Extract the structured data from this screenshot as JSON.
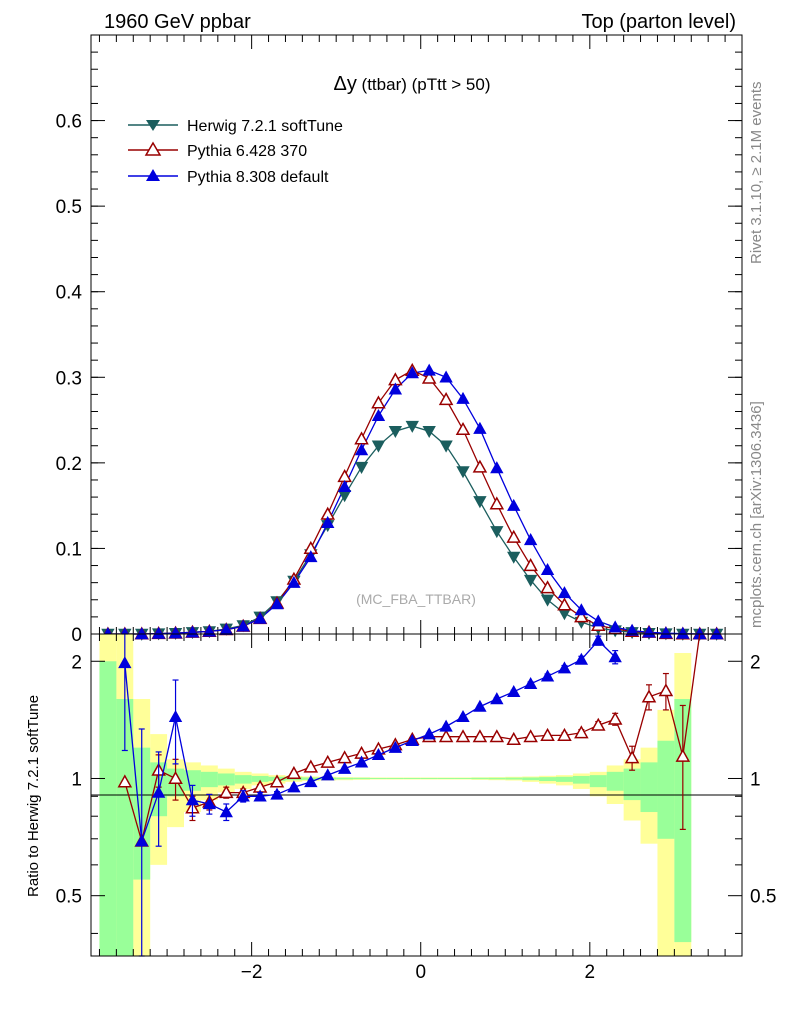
{
  "header": {
    "left": "1960 GeV ppbar",
    "right": "Top (parton level)"
  },
  "side_labels": {
    "rivet": "Rivet 3.1.10, ≥ 2.1M events",
    "mcplots": "mcplots.cern.ch [arXiv:1306.3436]"
  },
  "chart_data": [
    {
      "type": "line",
      "title": "Δy (ttbar) (pTtt > 50)",
      "title_main": "Δy",
      "title_rest": " (ttbar) (pTtt > 50)",
      "watermark": "(MC_FBA_TTBAR)",
      "xlim": [
        -3.9,
        3.8
      ],
      "ylim": [
        0,
        0.7
      ],
      "yticks": [
        0.1,
        0.2,
        0.3,
        0.4,
        0.5,
        0.6
      ],
      "ytick_labels": [
        "0.1",
        "0.2",
        "0.3",
        "0.4",
        "0.5",
        "0.6"
      ],
      "ybottom_label": "0",
      "legend_position": "top-left",
      "x": [
        -3.7,
        -3.5,
        -3.3,
        -3.1,
        -2.9,
        -2.7,
        -2.5,
        -2.3,
        -2.1,
        -1.9,
        -1.7,
        -1.5,
        -1.3,
        -1.1,
        -0.9,
        -0.7,
        -0.5,
        -0.3,
        -0.1,
        0.1,
        0.3,
        0.5,
        0.7,
        0.9,
        1.1,
        1.3,
        1.5,
        1.7,
        1.9,
        2.1,
        2.3,
        2.5,
        2.7,
        2.9,
        3.1,
        3.3,
        3.5
      ],
      "series": [
        {
          "name": "Herwig 7.2.1 softTune",
          "color": "#1b5e5e",
          "marker": "triangle-down-filled",
          "values": [
            0.0,
            0.0,
            0.0,
            0.0005,
            0.001,
            0.002,
            0.003,
            0.006,
            0.01,
            0.02,
            0.038,
            0.062,
            0.093,
            0.127,
            0.162,
            0.195,
            0.22,
            0.237,
            0.243,
            0.237,
            0.22,
            0.19,
            0.155,
            0.12,
            0.09,
            0.063,
            0.04,
            0.024,
            0.014,
            0.007,
            0.004,
            0.002,
            0.001,
            0.0005,
            0.0,
            0.0,
            0.0
          ]
        },
        {
          "name": "Pythia 6.428 370",
          "color": "#990000",
          "marker": "triangle-up-open",
          "values": [
            0.0,
            0.0,
            0.0,
            0.0005,
            0.001,
            0.002,
            0.003,
            0.005,
            0.009,
            0.018,
            0.036,
            0.064,
            0.1,
            0.14,
            0.184,
            0.228,
            0.27,
            0.297,
            0.308,
            0.299,
            0.274,
            0.239,
            0.195,
            0.152,
            0.113,
            0.08,
            0.054,
            0.034,
            0.02,
            0.01,
            0.006,
            0.003,
            0.002,
            0.0005,
            0.0,
            0.0,
            0.0
          ]
        },
        {
          "name": "Pythia 8.308 default",
          "color": "#0000dd",
          "marker": "triangle-up-filled",
          "values": [
            0.0,
            0.0,
            0.0,
            0.0005,
            0.001,
            0.002,
            0.003,
            0.005,
            0.009,
            0.018,
            0.035,
            0.06,
            0.09,
            0.13,
            0.172,
            0.215,
            0.255,
            0.286,
            0.305,
            0.308,
            0.3,
            0.275,
            0.24,
            0.194,
            0.15,
            0.11,
            0.075,
            0.048,
            0.028,
            0.015,
            0.008,
            0.004,
            0.002,
            0.001,
            0.0005,
            0.0,
            0.0
          ]
        }
      ]
    },
    {
      "type": "line",
      "ylabel": "Ratio to Herwig 7.2.1 softTune",
      "xlim": [
        -3.9,
        3.8
      ],
      "ylim": [
        0.35,
        2.35
      ],
      "yticks": [
        0.5,
        1,
        2
      ],
      "ytick_labels": [
        "0.5",
        "1",
        "2"
      ],
      "xticks": [
        -2,
        0,
        2
      ],
      "xtick_labels": [
        "−2",
        "0",
        "2"
      ],
      "reference_line": 1,
      "bands": {
        "edges": [
          -3.8,
          -3.6,
          -3.4,
          -3.2,
          -3.0,
          -2.8,
          -2.6,
          -2.4,
          -2.2,
          -2.0,
          -1.8,
          -1.6,
          -1.4,
          -1.2,
          -1.0,
          -0.8,
          -0.6,
          -0.4,
          -0.2,
          0.0,
          0.2,
          0.4,
          0.6,
          0.8,
          1.0,
          1.2,
          1.4,
          1.6,
          1.8,
          2.0,
          2.2,
          2.4,
          2.6,
          2.8,
          3.0,
          3.2
        ],
        "green_color": "#99ff99",
        "yellow_color": "#ffff99",
        "green_upper": [
          2.0,
          1.6,
          1.2,
          1.1,
          1.06,
          1.05,
          1.04,
          1.03,
          1.02,
          1.015,
          1.01,
          1.008,
          1.006,
          1.005,
          1.004,
          1.004,
          1.003,
          1.003,
          1.003,
          1.003,
          1.003,
          1.003,
          1.004,
          1.004,
          1.005,
          1.006,
          1.008,
          1.01,
          1.015,
          1.02,
          1.04,
          1.06,
          1.1,
          1.25,
          1.6
        ],
        "green_lower": [
          0.35,
          0.35,
          0.55,
          0.8,
          0.9,
          0.93,
          0.95,
          0.96,
          0.97,
          0.98,
          0.985,
          0.99,
          0.992,
          0.994,
          0.995,
          0.996,
          0.997,
          0.997,
          0.997,
          0.997,
          0.997,
          0.997,
          0.996,
          0.995,
          0.994,
          0.99,
          0.985,
          0.98,
          0.97,
          0.95,
          0.93,
          0.88,
          0.82,
          0.7,
          0.38
        ],
        "yellow_upper": [
          2.35,
          2.35,
          1.6,
          1.3,
          1.12,
          1.1,
          1.08,
          1.06,
          1.04,
          1.03,
          1.02,
          1.015,
          1.012,
          1.01,
          1.008,
          1.007,
          1.006,
          1.006,
          1.006,
          1.006,
          1.006,
          1.006,
          1.007,
          1.008,
          1.01,
          1.012,
          1.016,
          1.02,
          1.03,
          1.04,
          1.08,
          1.12,
          1.2,
          1.5,
          2.1
        ],
        "yellow_lower": [
          0.35,
          0.35,
          0.35,
          0.6,
          0.75,
          0.82,
          0.88,
          0.92,
          0.94,
          0.96,
          0.97,
          0.98,
          0.985,
          0.988,
          0.99,
          0.992,
          0.994,
          0.994,
          0.994,
          0.994,
          0.994,
          0.994,
          0.992,
          0.99,
          0.988,
          0.98,
          0.97,
          0.96,
          0.94,
          0.9,
          0.86,
          0.78,
          0.68,
          0.35,
          0.35
        ]
      },
      "series": [
        {
          "name": "Pythia 6.428 370",
          "color": "#990000",
          "marker": "triangle-up-open",
          "x": [
            -3.5,
            -3.3,
            -3.1,
            -2.9,
            -2.7,
            -2.5,
            -2.3,
            -2.1,
            -1.9,
            -1.7,
            -1.5,
            -1.3,
            -1.1,
            -0.9,
            -0.7,
            -0.5,
            -0.3,
            -0.1,
            0.1,
            0.3,
            0.5,
            0.7,
            0.9,
            1.1,
            1.3,
            1.5,
            1.7,
            1.9,
            2.1,
            2.3,
            2.5,
            2.7,
            2.9,
            3.1,
            3.3
          ],
          "values": [
            0.98,
            0.69,
            1.05,
            1.0,
            0.84,
            0.87,
            0.92,
            0.92,
            0.95,
            0.98,
            1.03,
            1.07,
            1.1,
            1.13,
            1.16,
            1.19,
            1.22,
            1.26,
            1.28,
            1.28,
            1.28,
            1.28,
            1.28,
            1.26,
            1.28,
            1.29,
            1.29,
            1.31,
            1.37,
            1.42,
            1.13,
            1.62,
            1.68,
            1.14,
            2.35
          ],
          "errors": [
            0.0,
            0.0,
            0.1,
            0.12,
            0.06,
            0.04,
            0.03,
            0.02,
            0.015,
            0.01,
            0.01,
            0.01,
            0.008,
            0.008,
            0.008,
            0.008,
            0.008,
            0.008,
            0.008,
            0.008,
            0.008,
            0.008,
            0.01,
            0.01,
            0.012,
            0.015,
            0.02,
            0.025,
            0.03,
            0.05,
            0.08,
            0.12,
            0.18,
            0.4,
            0.0
          ]
        },
        {
          "name": "Pythia 8.308 default",
          "color": "#0000dd",
          "marker": "triangle-up-filled",
          "x": [
            -3.5,
            -3.3,
            -3.1,
            -2.9,
            -2.7,
            -2.5,
            -2.3,
            -2.1,
            -1.9,
            -1.7,
            -1.5,
            -1.3,
            -1.1,
            -0.9,
            -0.7,
            -0.5,
            -0.3,
            -0.1,
            0.1,
            0.3,
            0.5,
            0.7,
            0.9,
            1.1,
            1.3,
            1.5,
            1.7,
            1.9,
            2.1,
            2.3
          ],
          "values": [
            1.98,
            0.69,
            0.92,
            1.44,
            0.88,
            0.86,
            0.82,
            0.9,
            0.9,
            0.91,
            0.95,
            0.98,
            1.02,
            1.06,
            1.1,
            1.15,
            1.2,
            1.25,
            1.3,
            1.36,
            1.44,
            1.53,
            1.6,
            1.67,
            1.75,
            1.83,
            1.92,
            2.02,
            2.26,
            2.05
          ],
          "errors": [
            0.8,
            0.65,
            0.25,
            0.35,
            0.08,
            0.05,
            0.04,
            0.03,
            0.02,
            0.015,
            0.01,
            0.01,
            0.01,
            0.008,
            0.008,
            0.008,
            0.008,
            0.008,
            0.008,
            0.008,
            0.01,
            0.01,
            0.012,
            0.015,
            0.02,
            0.025,
            0.03,
            0.04,
            0.06,
            0.08
          ]
        }
      ]
    }
  ]
}
